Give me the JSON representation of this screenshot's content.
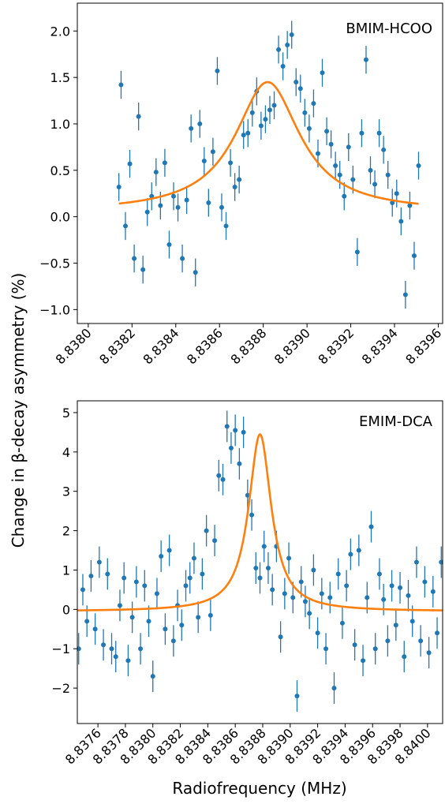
{
  "figure": {
    "ylabel": "Change in β-decay asymmetry (%)",
    "xlabel": "Radiofrequency (MHz)"
  },
  "colors": {
    "data": "#1f77b4",
    "fit": "#ff7f0e",
    "axis": "#000000"
  },
  "chart_data": [
    {
      "type": "scatter",
      "annotation": "BMIM-HCOO",
      "xlim": [
        8.83795,
        8.83962
      ],
      "ylim": [
        -1.15,
        2.3
      ],
      "x_ticks": [
        8.838,
        8.8382,
        8.8384,
        8.8386,
        8.8388,
        8.839,
        8.8392,
        8.8394,
        8.8396
      ],
      "x_tick_labels": [
        "8.8380",
        "8.8382",
        "8.8384",
        "8.8386",
        "8.8388",
        "8.8390",
        "8.8392",
        "8.8394",
        "8.8396"
      ],
      "y_ticks": [
        -1.0,
        -0.5,
        0.0,
        0.5,
        1.0,
        1.5,
        2.0
      ],
      "y_tick_labels": [
        "−1.0",
        "−0.5",
        "0.0",
        "0.5",
        "1.0",
        "1.5",
        "2.0"
      ],
      "series": [
        {
          "kind": "errorbar",
          "x": [
            8.83814,
            8.83815,
            8.83817,
            8.83819,
            8.83821,
            8.83823,
            8.83825,
            8.83827,
            8.83829,
            8.83831,
            8.83833,
            8.83835,
            8.83837,
            8.83839,
            8.83841,
            8.83843,
            8.83845,
            8.83847,
            8.83849,
            8.83851,
            8.83853,
            8.83855,
            8.83857,
            8.83859,
            8.83861,
            8.83863,
            8.83865,
            8.83867,
            8.83869,
            8.83871,
            8.83873,
            8.83875,
            8.83877,
            8.83879,
            8.83881,
            8.83883,
            8.83885,
            8.83887,
            8.83889,
            8.83891,
            8.83893,
            8.83895,
            8.83897,
            8.83899,
            8.83901,
            8.83903,
            8.83905,
            8.83907,
            8.83909,
            8.83911,
            8.83913,
            8.83915,
            8.83917,
            8.83919,
            8.83921,
            8.83923,
            8.83925,
            8.83927,
            8.83929,
            8.83931,
            8.83933,
            8.83935,
            8.83937,
            8.83939,
            8.83941,
            8.83943,
            8.83945,
            8.83947,
            8.83949,
            8.83951
          ],
          "y": [
            0.32,
            1.42,
            -0.1,
            0.57,
            -0.45,
            1.08,
            -0.57,
            0.05,
            0.22,
            0.48,
            0.12,
            0.58,
            -0.3,
            0.22,
            0.1,
            -0.45,
            0.18,
            0.95,
            -0.6,
            1.0,
            0.6,
            0.15,
            0.7,
            1.57,
            0.1,
            -0.1,
            0.58,
            0.32,
            0.4,
            0.88,
            0.9,
            1.12,
            1.35,
            0.98,
            1.05,
            1.15,
            1.2,
            1.8,
            1.62,
            1.85,
            1.96,
            1.45,
            1.38,
            1.12,
            0.95,
            1.22,
            0.68,
            1.55,
            0.92,
            0.78,
            0.55,
            0.45,
            0.22,
            0.75,
            0.4,
            -0.38,
            0.9,
            1.69,
            0.5,
            0.35,
            0.9,
            0.72,
            0.45,
            0.15,
            0.25,
            -0.05,
            -0.84,
            0.12,
            -0.42,
            0.55
          ],
          "yerr": 0.15
        },
        {
          "kind": "fit",
          "model": "lorentzian",
          "x0": 8.83882,
          "gamma": 0.00018,
          "amplitude": 1.4,
          "baseline": 0.05,
          "x_range": [
            8.83814,
            8.83951
          ]
        }
      ]
    },
    {
      "type": "scatter",
      "annotation": "EMIM-DCA",
      "xlim": [
        8.83745,
        8.84011
      ],
      "ylim": [
        -2.9,
        5.3
      ],
      "x_ticks": [
        8.8376,
        8.8378,
        8.838,
        8.8382,
        8.8384,
        8.8386,
        8.8388,
        8.839,
        8.8392,
        8.8394,
        8.8396,
        8.8398,
        8.84
      ],
      "x_tick_labels": [
        "8.8376",
        "8.8378",
        "8.8380",
        "8.8382",
        "8.8384",
        "8.8386",
        "8.8388",
        "8.8390",
        "8.8392",
        "8.8394",
        "8.8396",
        "8.8398",
        "8.8400"
      ],
      "y_ticks": [
        -2,
        -1,
        0,
        1,
        2,
        3,
        4,
        5
      ],
      "y_tick_labels": [
        "−2",
        "−1",
        "0",
        "1",
        "2",
        "3",
        "4",
        "5"
      ],
      "series": [
        {
          "kind": "errorbar",
          "x": [
            8.83746,
            8.83749,
            8.83752,
            8.83755,
            8.83758,
            8.83761,
            8.83764,
            8.83767,
            8.8377,
            8.83773,
            8.83776,
            8.83779,
            8.83782,
            8.83785,
            8.83788,
            8.83791,
            8.83794,
            8.83797,
            8.838,
            8.83803,
            8.83806,
            8.83809,
            8.83812,
            8.83815,
            8.83818,
            8.83821,
            8.83824,
            8.83827,
            8.8383,
            8.83833,
            8.83836,
            8.83839,
            8.83842,
            8.83845,
            8.83848,
            8.83851,
            8.83854,
            8.83857,
            8.8386,
            8.83863,
            8.83866,
            8.83869,
            8.83872,
            8.83875,
            8.83878,
            8.83881,
            8.83884,
            8.83887,
            8.8389,
            8.83893,
            8.83896,
            8.83899,
            8.83902,
            8.83905,
            8.83908,
            8.83911,
            8.83914,
            8.83917,
            8.8392,
            8.83923,
            8.83926,
            8.83929,
            8.83932,
            8.83935,
            8.83938,
            8.83941,
            8.83944,
            8.83947,
            8.8395,
            8.83953,
            8.83956,
            8.83959,
            8.83962,
            8.83965,
            8.83968,
            8.83971,
            8.83974,
            8.83977,
            8.8398,
            8.83983,
            8.83986,
            8.83989,
            8.83992,
            8.83995,
            8.83998,
            8.84001,
            8.84004,
            8.84007,
            8.8401
          ],
          "y": [
            -1.0,
            0.5,
            -0.3,
            0.85,
            -0.5,
            1.2,
            -0.9,
            0.9,
            -1.0,
            -1.2,
            0.1,
            0.8,
            -1.3,
            -0.2,
            0.7,
            -1.0,
            0.6,
            -0.3,
            -1.7,
            0.4,
            1.35,
            -0.5,
            1.5,
            -0.8,
            0.1,
            -0.4,
            0.6,
            0.8,
            1.3,
            -0.2,
            0.9,
            2.0,
            -0.15,
            1.75,
            3.4,
            3.3,
            4.65,
            4.1,
            4.55,
            3.7,
            4.5,
            2.9,
            2.4,
            1.05,
            0.8,
            1.6,
            1.05,
            0.5,
            1.6,
            -0.7,
            0.4,
            1.3,
            0.3,
            -2.2,
            0.7,
            0.2,
            -0.1,
            1.0,
            -0.6,
            0.4,
            -1.0,
            0.3,
            -2.0,
            0.9,
            -0.35,
            0.6,
            1.4,
            -0.9,
            1.5,
            -1.3,
            0.3,
            2.1,
            -1.0,
            0.9,
            0.25,
            -0.8,
            0.6,
            -0.4,
            0.55,
            -1.2,
            0.35,
            -0.3,
            1.2,
            -0.8,
            0.7,
            -1.1,
            0.45,
            -0.6,
            1.2
          ],
          "yerr": 0.4
        },
        {
          "kind": "fit",
          "model": "lorentzian",
          "x0": 8.83878,
          "gamma": 0.0001,
          "amplitude": 4.5,
          "baseline": -0.05,
          "x_range": [
            8.83745,
            8.84011
          ]
        }
      ]
    }
  ]
}
